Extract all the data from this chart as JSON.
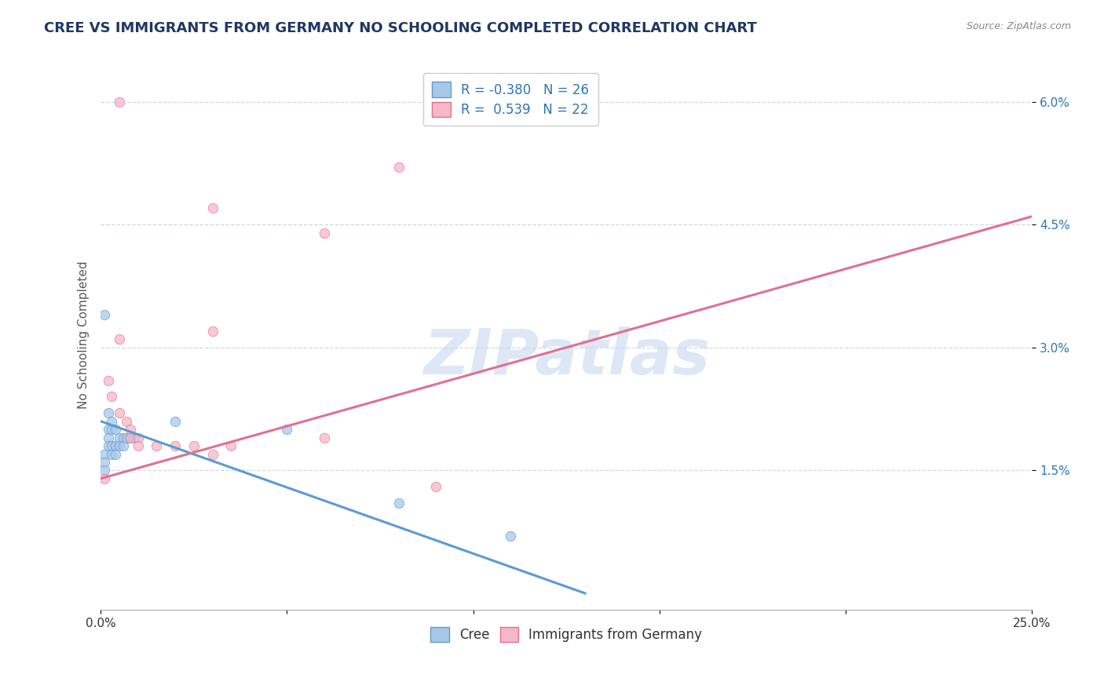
{
  "title": "CREE VS IMMIGRANTS FROM GERMANY NO SCHOOLING COMPLETED CORRELATION CHART",
  "source_text": "Source: ZipAtlas.com",
  "ylabel": "No Schooling Completed",
  "xlim": [
    0.0,
    0.25
  ],
  "ylim": [
    -0.002,
    0.065
  ],
  "xticks": [
    0.0,
    0.05,
    0.1,
    0.15,
    0.2,
    0.25
  ],
  "yticks": [
    0.015,
    0.03,
    0.045,
    0.06
  ],
  "ytick_labels": [
    "1.5%",
    "3.0%",
    "4.5%",
    "6.0%"
  ],
  "series": [
    {
      "name": "Cree",
      "R": -0.38,
      "N": 26,
      "color": "#a8c8e8",
      "edge_color": "#5b9bd5",
      "point_size": 80,
      "points": [
        [
          0.001,
          0.034
        ],
        [
          0.001,
          0.017
        ],
        [
          0.001,
          0.016
        ],
        [
          0.001,
          0.015
        ],
        [
          0.002,
          0.022
        ],
        [
          0.002,
          0.02
        ],
        [
          0.002,
          0.019
        ],
        [
          0.002,
          0.018
        ],
        [
          0.003,
          0.021
        ],
        [
          0.003,
          0.02
        ],
        [
          0.003,
          0.018
        ],
        [
          0.003,
          0.017
        ],
        [
          0.004,
          0.02
        ],
        [
          0.004,
          0.018
        ],
        [
          0.004,
          0.017
        ],
        [
          0.005,
          0.019
        ],
        [
          0.005,
          0.018
        ],
        [
          0.006,
          0.019
        ],
        [
          0.006,
          0.018
        ],
        [
          0.007,
          0.019
        ],
        [
          0.008,
          0.019
        ],
        [
          0.009,
          0.019
        ],
        [
          0.02,
          0.021
        ],
        [
          0.05,
          0.02
        ],
        [
          0.08,
          0.011
        ],
        [
          0.11,
          0.007
        ]
      ],
      "trendline": [
        [
          0.0,
          0.021
        ],
        [
          0.13,
          0.0
        ]
      ]
    },
    {
      "name": "Immigrants from Germany",
      "R": 0.539,
      "N": 22,
      "color": "#f4b8c8",
      "edge_color": "#e07090",
      "point_size": 80,
      "points": [
        [
          0.005,
          0.06
        ],
        [
          0.03,
          0.047
        ],
        [
          0.06,
          0.044
        ],
        [
          0.08,
          0.052
        ],
        [
          0.03,
          0.032
        ],
        [
          0.005,
          0.031
        ],
        [
          0.06,
          0.019
        ],
        [
          0.09,
          0.013
        ],
        [
          0.002,
          0.026
        ],
        [
          0.003,
          0.024
        ],
        [
          0.005,
          0.022
        ],
        [
          0.007,
          0.021
        ],
        [
          0.008,
          0.02
        ],
        [
          0.008,
          0.019
        ],
        [
          0.01,
          0.019
        ],
        [
          0.01,
          0.018
        ],
        [
          0.015,
          0.018
        ],
        [
          0.02,
          0.018
        ],
        [
          0.025,
          0.018
        ],
        [
          0.03,
          0.017
        ],
        [
          0.035,
          0.018
        ],
        [
          0.001,
          0.014
        ]
      ],
      "trendline": [
        [
          0.0,
          0.014
        ],
        [
          0.25,
          0.046
        ]
      ]
    }
  ],
  "legend_color": "#2e75b6",
  "watermark_color": "#c8d8f0",
  "background_color": "#ffffff",
  "grid_color": "#c8d4e8",
  "title_color": "#1f3864",
  "ylabel_color": "#595959",
  "title_fontsize": 13,
  "axis_fontsize": 10,
  "legend_fontsize": 12
}
